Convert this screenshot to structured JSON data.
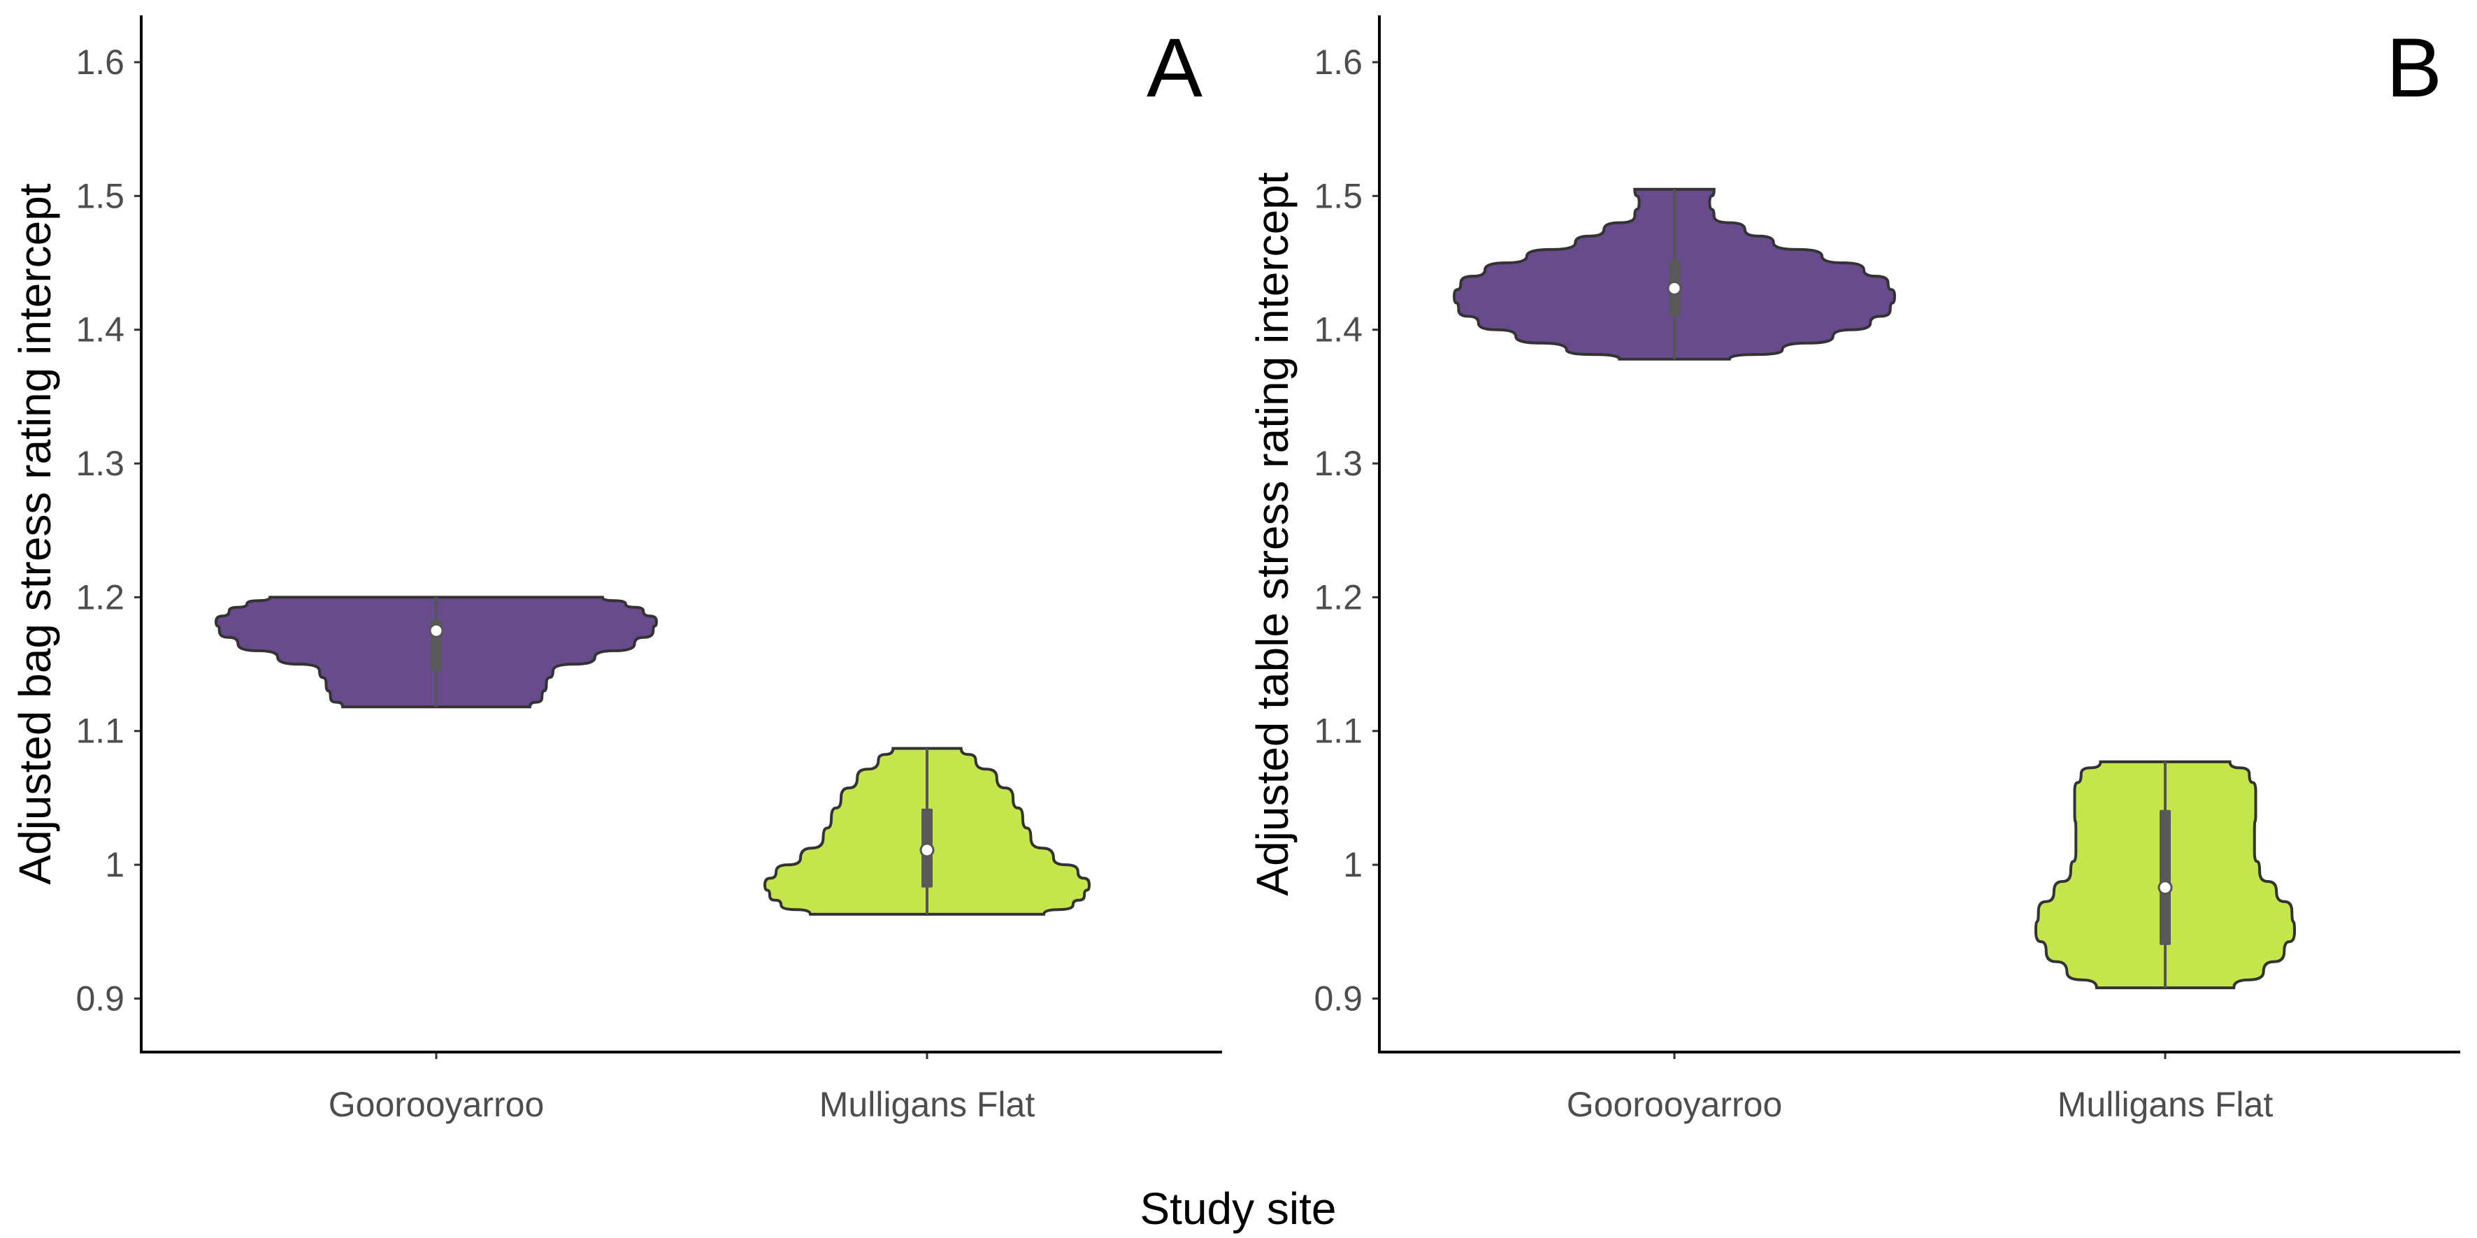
{
  "figure": {
    "xlabel_shared": "Study site"
  },
  "chart_data": [
    {
      "type": "violin",
      "panel_label": "A",
      "title": "",
      "xlabel": "",
      "ylabel": "Adjusted bag stress rating intercept",
      "ylim": [
        0.86,
        1.635
      ],
      "yticks": [
        0.9,
        1.0,
        1.1,
        1.2,
        1.3,
        1.4,
        1.5,
        1.6
      ],
      "ytick_labels": [
        "0.9",
        "1",
        "1.1",
        "1.2",
        "1.3",
        "1.4",
        "1.5",
        "1.6"
      ],
      "categories": [
        "Goorooyarroo",
        "Mulligans Flat"
      ],
      "grid": false,
      "series": [
        {
          "category": "Goorooyarroo",
          "color": "#674b8c",
          "min": 1.118,
          "max": 1.2,
          "q1": 1.145,
          "q3": 1.183,
          "median": 1.175,
          "density": [
            [
              1.118,
              0.425
            ],
            [
              1.125,
              0.48
            ],
            [
              1.135,
              0.5
            ],
            [
              1.145,
              0.53
            ],
            [
              1.155,
              0.72
            ],
            [
              1.165,
              0.9
            ],
            [
              1.175,
              0.985
            ],
            [
              1.182,
              1.0
            ],
            [
              1.19,
              0.94
            ],
            [
              1.195,
              0.86
            ],
            [
              1.2,
              0.755
            ]
          ]
        },
        {
          "category": "Mulligans Flat",
          "color": "#c5e54d",
          "min": 0.963,
          "max": 1.087,
          "q1": 0.983,
          "q3": 1.042,
          "median": 1.011,
          "density": [
            [
              0.963,
              0.72
            ],
            [
              0.97,
              0.9
            ],
            [
              0.977,
              0.97
            ],
            [
              0.985,
              1.0
            ],
            [
              0.995,
              0.93
            ],
            [
              1.005,
              0.78
            ],
            [
              1.02,
              0.64
            ],
            [
              1.035,
              0.59
            ],
            [
              1.05,
              0.53
            ],
            [
              1.065,
              0.43
            ],
            [
              1.078,
              0.3
            ],
            [
              1.087,
              0.21
            ]
          ]
        }
      ]
    },
    {
      "type": "violin",
      "panel_label": "B",
      "title": "",
      "xlabel": "",
      "ylabel": "Adjusted table stress rating intercept",
      "ylim": [
        0.86,
        1.635
      ],
      "yticks": [
        0.9,
        1.0,
        1.1,
        1.2,
        1.3,
        1.4,
        1.5,
        1.6
      ],
      "ytick_labels": [
        "0.9",
        "1",
        "1.1",
        "1.2",
        "1.3",
        "1.4",
        "1.5",
        "1.6"
      ],
      "categories": [
        "Goorooyarroo",
        "Mulligans Flat"
      ],
      "grid": false,
      "series": [
        {
          "category": "Goorooyarroo",
          "color": "#674b8c",
          "min": 1.378,
          "max": 1.505,
          "q1": 1.41,
          "q3": 1.452,
          "median": 1.431,
          "density": [
            [
              1.378,
              0.25
            ],
            [
              1.385,
              0.49
            ],
            [
              1.395,
              0.72
            ],
            [
              1.405,
              0.89
            ],
            [
              1.415,
              0.98
            ],
            [
              1.425,
              1.0
            ],
            [
              1.435,
              0.97
            ],
            [
              1.445,
              0.86
            ],
            [
              1.455,
              0.67
            ],
            [
              1.465,
              0.45
            ],
            [
              1.475,
              0.32
            ],
            [
              1.485,
              0.18
            ],
            [
              1.495,
              0.16
            ],
            [
              1.505,
              0.18
            ]
          ]
        },
        {
          "category": "Mulligans Flat",
          "color": "#c5e54d",
          "min": 0.908,
          "max": 1.077,
          "q1": 0.94,
          "q3": 1.041,
          "median": 0.983,
          "density": [
            [
              0.908,
              0.53
            ],
            [
              0.92,
              0.76
            ],
            [
              0.935,
              0.92
            ],
            [
              0.95,
              1.0
            ],
            [
              0.965,
              0.98
            ],
            [
              0.98,
              0.86
            ],
            [
              0.995,
              0.73
            ],
            [
              1.01,
              0.69
            ],
            [
              1.025,
              0.69
            ],
            [
              1.04,
              0.7
            ],
            [
              1.055,
              0.7
            ],
            [
              1.068,
              0.65
            ],
            [
              1.077,
              0.5
            ]
          ]
        }
      ]
    }
  ]
}
